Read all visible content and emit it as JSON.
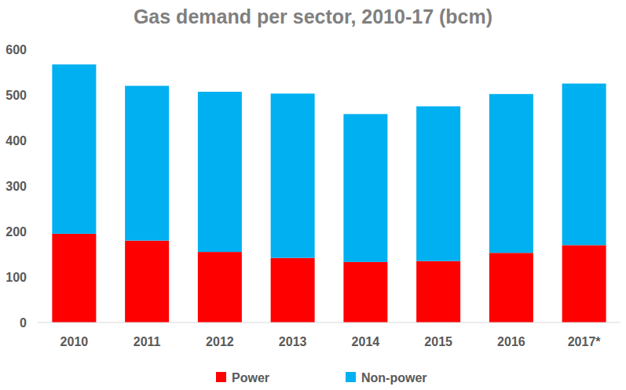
{
  "chart_data": {
    "type": "bar",
    "title": "Gas demand per sector, 2010-17 (bcm)",
    "categories": [
      "2010",
      "2011",
      "2012",
      "2013",
      "2014",
      "2015",
      "2016",
      "2017*"
    ],
    "series": [
      {
        "name": "Power",
        "color": "#ff0000",
        "values": [
          195,
          180,
          155,
          142,
          133,
          135,
          153,
          170
        ]
      },
      {
        "name": "Non-power",
        "color": "#00b0f0",
        "values": [
          372,
          340,
          352,
          361,
          325,
          340,
          349,
          355
        ]
      }
    ],
    "stacked": true,
    "ylim": [
      0,
      600
    ],
    "yticks": [
      0,
      100,
      200,
      300,
      400,
      500,
      600
    ],
    "grid": false,
    "legend": "bottom"
  }
}
